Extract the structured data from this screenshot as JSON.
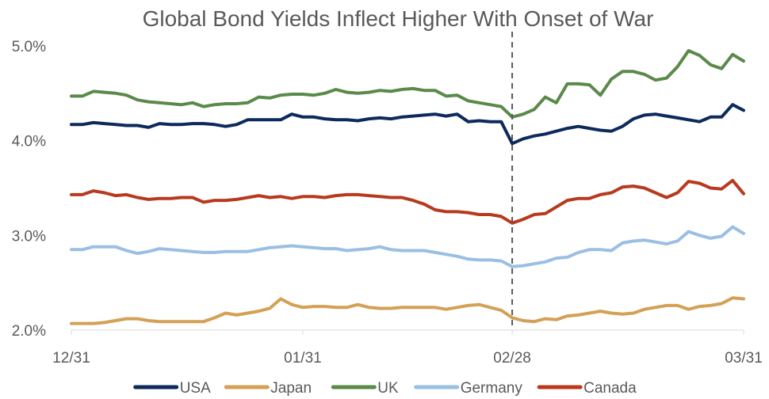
{
  "chart_data": {
    "type": "line",
    "title": "Global Bond Yields Inflect Higher With Onset of War",
    "xlabel": "",
    "ylabel": "",
    "x_tick_labels": [
      "12/31",
      "01/31",
      "02/28",
      "03/31"
    ],
    "x_tick_index": [
      0,
      21,
      40,
      61
    ],
    "y_ticks": [
      2.0,
      3.0,
      4.0,
      5.0
    ],
    "y_tick_labels": [
      "2.0%",
      "3.0%",
      "4.0%",
      "5.0%"
    ],
    "ylim": [
      2.0,
      5.0
    ],
    "grid": false,
    "legend_position": "bottom",
    "vertical_marker": {
      "x_index": 40,
      "style": "dashed"
    },
    "series": [
      {
        "name": "USA",
        "color": "#0c2a5c",
        "values": [
          4.17,
          4.17,
          4.19,
          4.18,
          4.17,
          4.16,
          4.16,
          4.14,
          4.18,
          4.17,
          4.17,
          4.18,
          4.18,
          4.17,
          4.15,
          4.17,
          4.22,
          4.22,
          4.22,
          4.22,
          4.28,
          4.25,
          4.25,
          4.23,
          4.22,
          4.22,
          4.21,
          4.23,
          4.24,
          4.23,
          4.25,
          4.26,
          4.27,
          4.28,
          4.26,
          4.28,
          4.2,
          4.21,
          4.2,
          4.2,
          3.97,
          4.02,
          4.05,
          4.07,
          4.1,
          4.13,
          4.15,
          4.13,
          4.11,
          4.1,
          4.15,
          4.23,
          4.27,
          4.28,
          4.26,
          4.24,
          4.22,
          4.2,
          4.25,
          4.25,
          4.38,
          4.32
        ]
      },
      {
        "name": "Japan",
        "color": "#d4a055",
        "values": [
          2.07,
          2.07,
          2.07,
          2.08,
          2.1,
          2.12,
          2.12,
          2.1,
          2.09,
          2.09,
          2.09,
          2.09,
          2.09,
          2.13,
          2.18,
          2.16,
          2.18,
          2.2,
          2.23,
          2.33,
          2.27,
          2.24,
          2.25,
          2.25,
          2.24,
          2.24,
          2.27,
          2.24,
          2.23,
          2.23,
          2.24,
          2.24,
          2.24,
          2.24,
          2.22,
          2.24,
          2.26,
          2.27,
          2.24,
          2.21,
          2.13,
          2.1,
          2.09,
          2.12,
          2.11,
          2.15,
          2.16,
          2.18,
          2.2,
          2.18,
          2.17,
          2.18,
          2.22,
          2.24,
          2.26,
          2.26,
          2.22,
          2.25,
          2.26,
          2.28,
          2.34,
          2.33
        ]
      },
      {
        "name": "UK",
        "color": "#5a8a4a",
        "values": [
          4.47,
          4.47,
          4.52,
          4.51,
          4.5,
          4.48,
          4.43,
          4.41,
          4.4,
          4.39,
          4.38,
          4.4,
          4.36,
          4.38,
          4.39,
          4.39,
          4.4,
          4.46,
          4.45,
          4.48,
          4.49,
          4.49,
          4.48,
          4.5,
          4.54,
          4.51,
          4.5,
          4.51,
          4.53,
          4.52,
          4.54,
          4.55,
          4.53,
          4.53,
          4.47,
          4.48,
          4.42,
          4.4,
          4.38,
          4.36,
          4.25,
          4.28,
          4.33,
          4.46,
          4.4,
          4.6,
          4.6,
          4.59,
          4.48,
          4.65,
          4.73,
          4.73,
          4.7,
          4.64,
          4.66,
          4.78,
          4.95,
          4.9,
          4.8,
          4.76,
          4.91,
          4.84
        ]
      },
      {
        "name": "Germany",
        "color": "#9bbfe3",
        "values": [
          2.85,
          2.85,
          2.88,
          2.88,
          2.88,
          2.84,
          2.81,
          2.83,
          2.86,
          2.85,
          2.84,
          2.83,
          2.82,
          2.82,
          2.83,
          2.83,
          2.83,
          2.85,
          2.87,
          2.88,
          2.89,
          2.88,
          2.87,
          2.86,
          2.86,
          2.84,
          2.85,
          2.86,
          2.88,
          2.85,
          2.84,
          2.84,
          2.84,
          2.82,
          2.8,
          2.78,
          2.75,
          2.74,
          2.74,
          2.73,
          2.67,
          2.68,
          2.7,
          2.72,
          2.76,
          2.77,
          2.82,
          2.85,
          2.85,
          2.84,
          2.92,
          2.94,
          2.95,
          2.93,
          2.91,
          2.94,
          3.04,
          3.0,
          2.97,
          2.99,
          3.09,
          3.02
        ]
      },
      {
        "name": "Canada",
        "color": "#b83a1e",
        "values": [
          3.43,
          3.43,
          3.47,
          3.45,
          3.42,
          3.43,
          3.4,
          3.38,
          3.39,
          3.39,
          3.4,
          3.4,
          3.35,
          3.37,
          3.37,
          3.38,
          3.4,
          3.42,
          3.4,
          3.41,
          3.39,
          3.41,
          3.41,
          3.4,
          3.42,
          3.43,
          3.43,
          3.42,
          3.41,
          3.4,
          3.4,
          3.37,
          3.33,
          3.27,
          3.25,
          3.25,
          3.24,
          3.22,
          3.22,
          3.2,
          3.13,
          3.17,
          3.22,
          3.23,
          3.3,
          3.37,
          3.39,
          3.39,
          3.43,
          3.45,
          3.51,
          3.52,
          3.5,
          3.45,
          3.4,
          3.45,
          3.57,
          3.55,
          3.5,
          3.49,
          3.58,
          3.44
        ]
      }
    ]
  }
}
